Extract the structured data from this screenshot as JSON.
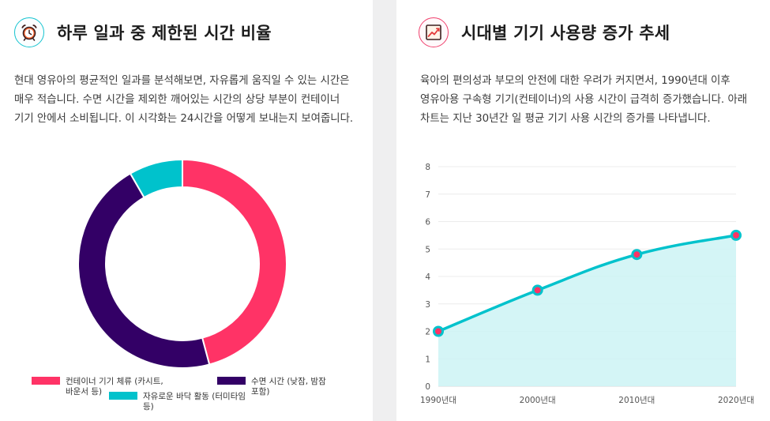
{
  "left_card": {
    "icon": "alarm-clock-icon",
    "title": "하루 일과 중 제한된 시간 비율",
    "description": "현대 영유아의 평균적인 일과를 분석해보면, 자유롭게 움직일 수 있는 시간은 매우 적습니다. 수면 시간을 제외한 깨어있는 시간의 상당 부분이 컨테이너 기기 안에서 소비됩니다. 이 시각화는 24시간을 어떻게 보내는지 보여줍니다."
  },
  "right_card": {
    "icon": "line-chart-icon",
    "title": "시대별 기기 사용량 증가 추세",
    "description": "육아의 편의성과 부모의 안전에 대한 우려가 커지면서, 1990년대 이후 영유아용 구속형 기기(컨테이너)의 사용 시간이 급격히 증가했습니다. 아래 차트는 지난 30년간 일 평균 기기 사용 시간의 증가를 나타냅니다."
  },
  "colors": {
    "container": "#ff3366",
    "sleep": "#330066",
    "free": "#00c2cc",
    "line": "#00c2cc",
    "area": "#cdf3f5",
    "point_fill": "#ff3366"
  },
  "chart_data": [
    {
      "type": "pie",
      "variant": "doughnut",
      "title": "하루 일과 중 제한된 시간 비율",
      "categories": [
        "컨테이너 기기 체류 (카시트, 바운서 등)",
        "수면 시간 (낮잠, 밤잠 포함)",
        "자유로운 바닥 활동 (터미타임 등)"
      ],
      "values": [
        11,
        11,
        2
      ],
      "legend_position": "bottom"
    },
    {
      "type": "area",
      "title": "시대별 기기 사용량 증가 추세",
      "x": [
        "1990년대",
        "2000년대",
        "2010년대",
        "2020년대"
      ],
      "series": [
        {
          "name": "일 평균 기기 사용 시간",
          "values": [
            2,
            3.5,
            4.8,
            5.5
          ]
        }
      ],
      "ylim": [
        0,
        8
      ],
      "yticks": [
        0,
        1,
        2,
        3,
        4,
        5,
        6,
        7,
        8
      ],
      "grid": true,
      "xlabel": "",
      "ylabel": ""
    }
  ]
}
